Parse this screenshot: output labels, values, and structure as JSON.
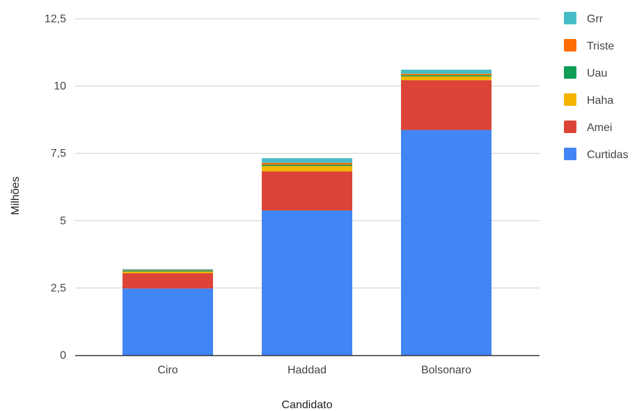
{
  "chart_data": {
    "type": "bar",
    "stacked": true,
    "title": "",
    "xlabel": "Candidato",
    "ylabel": "Milhões",
    "ylim": [
      0,
      12.5
    ],
    "yticks": [
      0,
      2.5,
      5,
      7.5,
      10,
      12.5
    ],
    "ytick_labels": [
      "0",
      "2,5",
      "5",
      "7,5",
      "10",
      "12,5"
    ],
    "grid": true,
    "legend_position": "right",
    "categories": [
      "Ciro",
      "Haddad",
      "Bolsonaro"
    ],
    "series": [
      {
        "name": "Curtidas",
        "color": "#4285f4",
        "values": [
          2.48,
          5.38,
          8.37
        ]
      },
      {
        "name": "Amei",
        "color": "#db4437",
        "values": [
          0.57,
          1.45,
          1.85
        ]
      },
      {
        "name": "Haha",
        "color": "#f4b400",
        "values": [
          0.06,
          0.2,
          0.14
        ]
      },
      {
        "name": "Uau",
        "color": "#0f9d58",
        "values": [
          0.04,
          0.05,
          0.05
        ]
      },
      {
        "name": "Triste",
        "color": "#ff6d00",
        "values": [
          0.02,
          0.07,
          0.05
        ]
      },
      {
        "name": "Grr",
        "color": "#46bdc6",
        "values": [
          0.03,
          0.17,
          0.15
        ]
      }
    ]
  }
}
